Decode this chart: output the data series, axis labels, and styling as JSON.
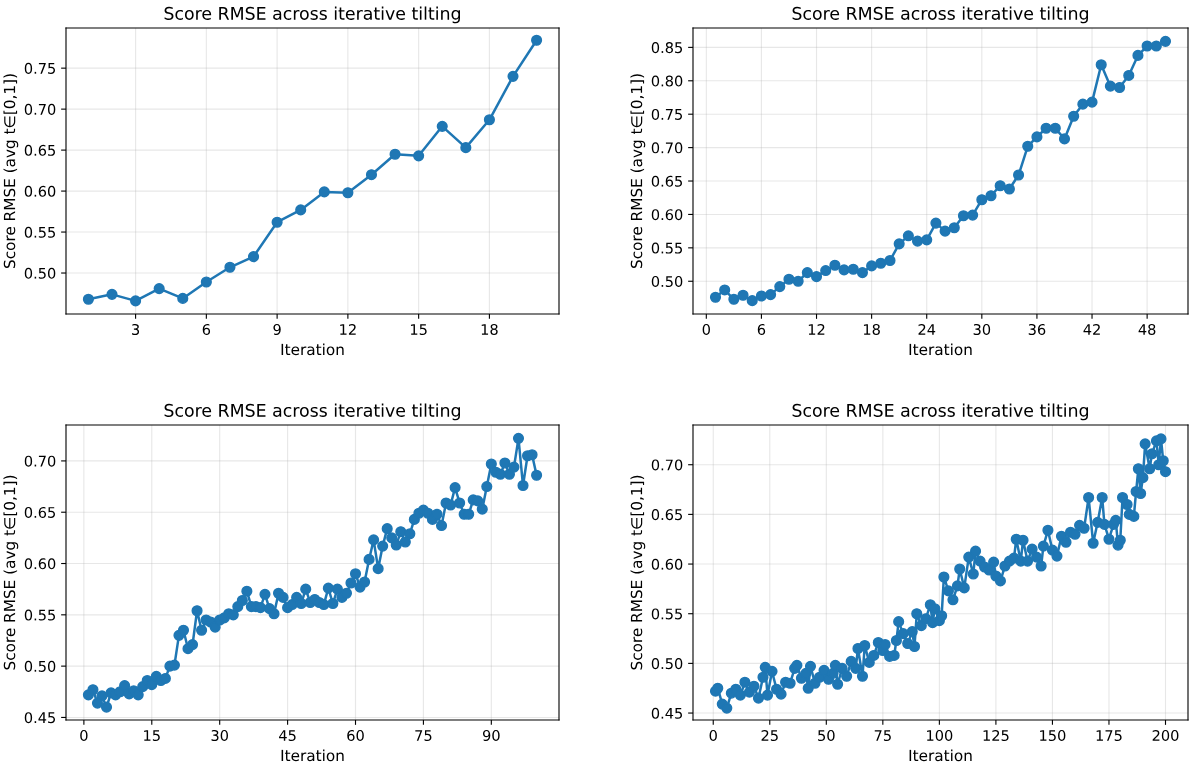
{
  "chart_data": [
    {
      "type": "line",
      "title": "Score RMSE across iterative tilting",
      "xlabel": "Iteration",
      "ylabel": "Score RMSE (avg t∈[0,1])",
      "marker": "circle",
      "line_style": "solid",
      "grid": true,
      "xlim": [
        0.05,
        20.95
      ],
      "ylim": [
        0.45,
        0.799
      ],
      "xticks": [
        3,
        6,
        9,
        12,
        15,
        18
      ],
      "yticks": [
        {
          "value": 0.5,
          "label": "0.50"
        },
        0.55,
        {
          "value": 0.6,
          "label": "0.60"
        },
        0.65,
        {
          "value": 0.7,
          "label": "0.70"
        },
        0.75
      ],
      "x": [
        1,
        2,
        3,
        4,
        5,
        6,
        7,
        8,
        9,
        10,
        11,
        12,
        13,
        14,
        15,
        16,
        17,
        18,
        19,
        20
      ],
      "series": [
        {
          "color": "#1f77b4",
          "values": [
            0.468,
            0.474,
            0.466,
            0.481,
            0.469,
            0.489,
            0.507,
            0.52,
            0.562,
            0.577,
            0.599,
            0.598,
            0.62,
            0.645,
            0.643,
            0.679,
            0.653,
            0.687,
            0.74,
            0.784
          ]
        }
      ]
    },
    {
      "type": "line",
      "title": "Score RMSE across iterative tilting",
      "xlabel": "Iteration",
      "ylabel": "Score RMSE (avg t∈[0,1])",
      "marker": "circle",
      "line_style": "solid",
      "grid": true,
      "xlim": [
        -1.45,
        52.45
      ],
      "ylim": [
        0.451,
        0.879
      ],
      "xticks": [
        0,
        6,
        12,
        18,
        24,
        30,
        36,
        42,
        48
      ],
      "yticks": [
        {
          "value": 0.5,
          "label": "0.50"
        },
        0.55,
        {
          "value": 0.6,
          "label": "0.60"
        },
        0.65,
        {
          "value": 0.7,
          "label": "0.70"
        },
        0.75,
        {
          "value": 0.8,
          "label": "0.80"
        },
        0.85
      ],
      "x": [
        1,
        2,
        3,
        4,
        5,
        6,
        7,
        8,
        9,
        10,
        11,
        12,
        13,
        14,
        15,
        16,
        17,
        18,
        19,
        20,
        21,
        22,
        23,
        24,
        25,
        26,
        27,
        28,
        29,
        30,
        31,
        32,
        33,
        34,
        35,
        36,
        37,
        38,
        39,
        40,
        41,
        42,
        43,
        44,
        45,
        46,
        47,
        48,
        49,
        50
      ],
      "series": [
        {
          "color": "#1f77b4",
          "values": [
            0.476,
            0.487,
            0.473,
            0.479,
            0.471,
            0.478,
            0.48,
            0.492,
            0.503,
            0.5,
            0.513,
            0.507,
            0.516,
            0.524,
            0.517,
            0.518,
            0.513,
            0.523,
            0.527,
            0.531,
            0.556,
            0.568,
            0.56,
            0.562,
            0.587,
            0.575,
            0.58,
            0.598,
            0.599,
            0.622,
            0.628,
            0.643,
            0.638,
            0.659,
            0.702,
            0.716,
            0.729,
            0.729,
            0.713,
            0.747,
            0.765,
            0.768,
            0.824,
            0.792,
            0.79,
            0.808,
            0.838,
            0.852,
            0.852,
            0.859
          ]
        }
      ]
    },
    {
      "type": "line",
      "title": "Score RMSE across iterative tilting",
      "xlabel": "Iteration",
      "ylabel": "Score RMSE (avg t∈[0,1])",
      "marker": "circle",
      "line_style": "solid",
      "grid": true,
      "xlim": [
        -3.95,
        104.95
      ],
      "ylim": [
        0.4475,
        0.735
      ],
      "xticks": [
        0,
        15,
        30,
        45,
        60,
        75,
        90
      ],
      "yticks": [
        0.45,
        {
          "value": 0.5,
          "label": "0.50"
        },
        0.55,
        {
          "value": 0.6,
          "label": "0.60"
        },
        0.65,
        {
          "value": 0.7,
          "label": "0.70"
        }
      ],
      "x": [
        1,
        2,
        3,
        4,
        5,
        6,
        7,
        8,
        9,
        10,
        11,
        12,
        13,
        14,
        15,
        16,
        17,
        18,
        19,
        20,
        21,
        22,
        23,
        24,
        25,
        26,
        27,
        28,
        29,
        30,
        31,
        32,
        33,
        34,
        35,
        36,
        37,
        38,
        39,
        40,
        41,
        42,
        43,
        44,
        45,
        46,
        47,
        48,
        49,
        50,
        51,
        52,
        53,
        54,
        55,
        56,
        57,
        58,
        59,
        60,
        61,
        62,
        63,
        64,
        65,
        66,
        67,
        68,
        69,
        70,
        71,
        72,
        73,
        74,
        75,
        76,
        77,
        78,
        79,
        80,
        81,
        82,
        83,
        84,
        85,
        86,
        87,
        88,
        89,
        90,
        91,
        92,
        93,
        94,
        95,
        96,
        97,
        98,
        99,
        100
      ],
      "series": [
        {
          "color": "#1f77b4",
          "values": [
            0.472,
            0.477,
            0.464,
            0.471,
            0.46,
            0.474,
            0.472,
            0.475,
            0.481,
            0.473,
            0.476,
            0.472,
            0.48,
            0.486,
            0.482,
            0.49,
            0.486,
            0.488,
            0.5,
            0.501,
            0.53,
            0.535,
            0.517,
            0.521,
            0.554,
            0.535,
            0.545,
            0.543,
            0.538,
            0.545,
            0.547,
            0.551,
            0.55,
            0.558,
            0.564,
            0.573,
            0.558,
            0.558,
            0.557,
            0.57,
            0.556,
            0.551,
            0.571,
            0.567,
            0.557,
            0.56,
            0.567,
            0.561,
            0.575,
            0.562,
            0.565,
            0.562,
            0.56,
            0.576,
            0.561,
            0.575,
            0.567,
            0.571,
            0.581,
            0.59,
            0.577,
            0.582,
            0.604,
            0.623,
            0.595,
            0.617,
            0.634,
            0.625,
            0.618,
            0.631,
            0.621,
            0.629,
            0.643,
            0.649,
            0.652,
            0.649,
            0.643,
            0.648,
            0.637,
            0.659,
            0.657,
            0.674,
            0.659,
            0.648,
            0.648,
            0.662,
            0.661,
            0.653,
            0.675,
            0.697,
            0.689,
            0.687,
            0.698,
            0.687,
            0.694,
            0.722,
            0.676,
            0.705,
            0.706,
            0.686
          ]
        }
      ]
    },
    {
      "type": "line",
      "title": "Score RMSE across iterative tilting",
      "xlabel": "Iteration",
      "ylabel": "Score RMSE (avg t∈[0,1])",
      "marker": "circle",
      "line_style": "solid",
      "grid": true,
      "xlim": [
        -8.95,
        209.95
      ],
      "ylim": [
        0.443,
        0.74
      ],
      "xticks": [
        0,
        25,
        50,
        75,
        100,
        125,
        150,
        175,
        200
      ],
      "yticks": [
        0.45,
        {
          "value": 0.5,
          "label": "0.50"
        },
        0.55,
        {
          "value": 0.6,
          "label": "0.60"
        },
        0.65,
        {
          "value": 0.7,
          "label": "0.70"
        }
      ],
      "x": [
        1,
        2,
        4,
        6,
        8,
        10,
        12,
        14,
        16,
        18,
        20,
        22,
        23,
        24,
        26,
        28,
        30,
        32,
        34,
        36,
        37,
        39,
        41,
        42,
        43,
        45,
        47,
        49,
        51,
        53,
        54,
        55,
        57,
        59,
        61,
        63,
        64,
        66,
        67,
        69,
        71,
        73,
        75,
        76,
        78,
        80,
        81,
        82,
        84,
        86,
        88,
        89,
        90,
        92,
        94,
        96,
        97,
        98,
        100,
        101,
        102,
        104,
        106,
        108,
        109,
        111,
        113,
        115,
        116,
        118,
        120,
        122,
        124,
        125,
        127,
        129,
        131,
        133,
        134,
        136,
        137,
        139,
        141,
        143,
        145,
        146,
        148,
        150,
        152,
        154,
        156,
        158,
        160,
        162,
        164,
        166,
        168,
        170,
        172,
        173,
        175,
        177,
        178,
        179,
        180,
        181,
        183,
        184,
        186,
        187,
        188,
        189,
        190,
        191,
        193,
        194,
        196,
        197,
        198,
        199,
        200
      ],
      "series": [
        {
          "color": "#1f77b4",
          "values": [
            0.472,
            0.475,
            0.459,
            0.455,
            0.47,
            0.474,
            0.468,
            0.481,
            0.471,
            0.477,
            0.465,
            0.486,
            0.496,
            0.468,
            0.492,
            0.474,
            0.469,
            0.481,
            0.48,
            0.495,
            0.498,
            0.485,
            0.49,
            0.475,
            0.497,
            0.48,
            0.486,
            0.493,
            0.484,
            0.49,
            0.498,
            0.479,
            0.495,
            0.487,
            0.502,
            0.495,
            0.515,
            0.487,
            0.518,
            0.501,
            0.508,
            0.521,
            0.513,
            0.519,
            0.507,
            0.508,
            0.523,
            0.542,
            0.53,
            0.52,
            0.532,
            0.517,
            0.55,
            0.538,
            0.545,
            0.559,
            0.541,
            0.555,
            0.543,
            0.548,
            0.587,
            0.573,
            0.564,
            0.578,
            0.595,
            0.576,
            0.607,
            0.59,
            0.613,
            0.603,
            0.597,
            0.594,
            0.602,
            0.588,
            0.583,
            0.598,
            0.603,
            0.606,
            0.625,
            0.603,
            0.624,
            0.603,
            0.615,
            0.607,
            0.598,
            0.618,
            0.634,
            0.614,
            0.608,
            0.628,
            0.622,
            0.632,
            0.63,
            0.639,
            0.636,
            0.667,
            0.621,
            0.642,
            0.667,
            0.64,
            0.625,
            0.64,
            0.644,
            0.619,
            0.624,
            0.667,
            0.66,
            0.65,
            0.648,
            0.673,
            0.696,
            0.671,
            0.687,
            0.721,
            0.696,
            0.711,
            0.724,
            0.7,
            0.726,
            0.704,
            0.693
          ]
        }
      ]
    }
  ]
}
